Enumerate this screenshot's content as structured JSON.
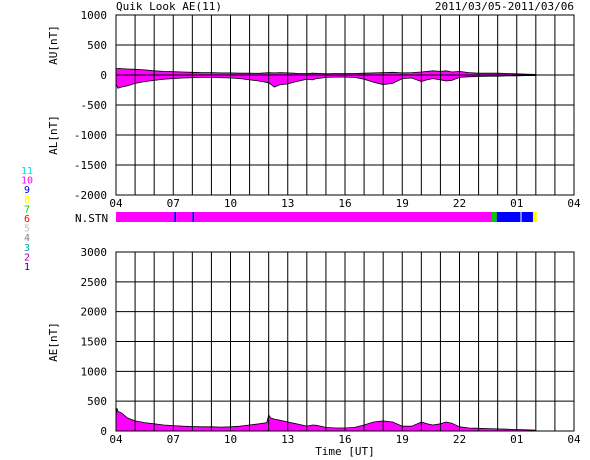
{
  "header": {
    "title": "Quik Look AE(11)",
    "date_range": "2011/03/05-2011/03/06"
  },
  "x_axis": {
    "label": "Time [UT]",
    "tick_labels": [
      "04",
      "07",
      "10",
      "13",
      "16",
      "19",
      "22",
      "01",
      "04"
    ],
    "range_hours": [
      4,
      28
    ]
  },
  "station_legend": {
    "numbers": [
      "11",
      "10",
      "9",
      "8",
      "7",
      "6",
      "5",
      "4",
      "3",
      "2",
      "1"
    ],
    "colors": [
      "#00e0e0",
      "#ff00ff",
      "#0000ff",
      "#ffff00",
      "#00cc00",
      "#ff0000",
      "#c0c0c0",
      "#808080",
      "#00aaaa",
      "#aa00aa",
      "#0000aa"
    ]
  },
  "nstn": {
    "label": "N.STN",
    "segments": [
      {
        "start": 4.0,
        "end": 7.05,
        "color": "#ff00ff"
      },
      {
        "start": 7.05,
        "end": 7.15,
        "color": "#0000ff"
      },
      {
        "start": 7.15,
        "end": 8.0,
        "color": "#ff00ff"
      },
      {
        "start": 8.0,
        "end": 8.1,
        "color": "#0000ff"
      },
      {
        "start": 8.1,
        "end": 23.7,
        "color": "#ff00ff"
      },
      {
        "start": 23.7,
        "end": 23.95,
        "color": "#00cc00"
      },
      {
        "start": 23.95,
        "end": 25.2,
        "color": "#0000ff"
      },
      {
        "start": 25.2,
        "end": 25.25,
        "color": "#ffffff"
      },
      {
        "start": 25.25,
        "end": 25.85,
        "color": "#0000ff"
      },
      {
        "start": 25.85,
        "end": 26.05,
        "color": "#ffff00"
      }
    ]
  },
  "chart_data": [
    {
      "type": "area",
      "ylabel_top": "AU[nT]",
      "ylabel_bottom": "AL[nT]",
      "ylim": [
        -2000,
        1000
      ],
      "yticks": [
        "1000",
        "500",
        "0",
        "-500",
        "-1000",
        "-1500",
        "-2000"
      ],
      "grid": true,
      "fill_color": "#ff00ff",
      "x": [
        4.0,
        4.1,
        4.3,
        4.6,
        5.0,
        5.5,
        6.0,
        6.5,
        7.0,
        7.5,
        8.0,
        8.5,
        9.0,
        9.5,
        10.0,
        10.5,
        11.0,
        11.5,
        12.0,
        12.3,
        12.6,
        13.0,
        13.3,
        13.6,
        14.0,
        14.3,
        14.5,
        14.8,
        15.0,
        15.5,
        16.0,
        16.5,
        17.0,
        17.5,
        18.0,
        18.5,
        19.0,
        19.5,
        20.0,
        20.3,
        20.6,
        21.0,
        21.3,
        21.6,
        22.0,
        22.5,
        23.0,
        23.5,
        24.0,
        24.5,
        25.0,
        25.5,
        26.0
      ],
      "series": [
        {
          "values": [
            100,
            110,
            105,
            100,
            95,
            85,
            70,
            60,
            55,
            50,
            45,
            40,
            40,
            35,
            35,
            30,
            30,
            28,
            40,
            35,
            40,
            35,
            30,
            25,
            25,
            30,
            28,
            25,
            20,
            25,
            25,
            25,
            30,
            35,
            40,
            45,
            35,
            40,
            50,
            60,
            70,
            60,
            70,
            50,
            60,
            40,
            30,
            30,
            30,
            25,
            20,
            15,
            10
          ]
        },
        {
          "values": [
            -150,
            -220,
            -200,
            -180,
            -140,
            -110,
            -90,
            -70,
            -60,
            -50,
            -45,
            -40,
            -40,
            -45,
            -50,
            -60,
            -80,
            -100,
            -130,
            -200,
            -160,
            -150,
            -120,
            -100,
            -70,
            -80,
            -60,
            -50,
            -40,
            -35,
            -35,
            -40,
            -70,
            -120,
            -160,
            -140,
            -60,
            -50,
            -110,
            -80,
            -60,
            -80,
            -100,
            -90,
            -40,
            -30,
            -25,
            -20,
            -20,
            -15,
            -15,
            -10,
            -10
          ]
        }
      ]
    },
    {
      "type": "area",
      "ylabel": "AE[nT]",
      "ylim": [
        0,
        3000
      ],
      "yticks": [
        "3000",
        "2500",
        "2000",
        "1500",
        "1000",
        "500",
        "0"
      ],
      "grid": true,
      "fill_color": "#ff00ff",
      "x": [
        4.0,
        4.05,
        4.1,
        4.3,
        4.6,
        5.0,
        5.5,
        6.0,
        6.5,
        7.0,
        7.5,
        8.0,
        8.5,
        9.0,
        9.5,
        10.0,
        10.5,
        11.0,
        11.5,
        11.9,
        12.0,
        12.1,
        12.3,
        12.6,
        13.0,
        13.3,
        13.6,
        14.0,
        14.3,
        14.5,
        14.8,
        15.0,
        15.5,
        16.0,
        16.5,
        17.0,
        17.5,
        18.0,
        18.5,
        19.0,
        19.5,
        20.0,
        20.3,
        20.6,
        21.0,
        21.3,
        21.6,
        22.0,
        22.5,
        23.0,
        23.5,
        24.0,
        24.5,
        25.0,
        25.5,
        26.0
      ],
      "values": [
        250,
        380,
        330,
        300,
        220,
        170,
        140,
        120,
        100,
        90,
        80,
        75,
        70,
        70,
        65,
        70,
        80,
        100,
        120,
        140,
        270,
        220,
        200,
        180,
        150,
        130,
        110,
        80,
        100,
        95,
        75,
        60,
        50,
        50,
        60,
        100,
        150,
        170,
        150,
        80,
        80,
        150,
        120,
        100,
        120,
        150,
        130,
        70,
        50,
        45,
        40,
        35,
        30,
        25,
        20,
        15
      ]
    }
  ]
}
